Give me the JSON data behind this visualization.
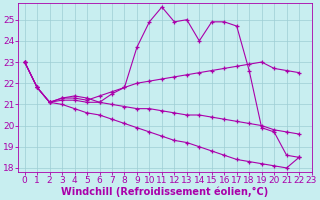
{
  "xlabel": "Windchill (Refroidissement éolien,°C)",
  "xlim": [
    -0.5,
    23
  ],
  "ylim": [
    17.8,
    25.8
  ],
  "yticks": [
    18,
    19,
    20,
    21,
    22,
    23,
    24,
    25
  ],
  "xticks": [
    0,
    1,
    2,
    3,
    4,
    5,
    6,
    7,
    8,
    9,
    10,
    11,
    12,
    13,
    14,
    15,
    16,
    17,
    18,
    19,
    20,
    21,
    22,
    23
  ],
  "background_color": "#c8eef0",
  "line_color": "#aa00aa",
  "grid_color": "#9ecdd4",
  "series": [
    [
      23.0,
      21.8,
      21.1,
      21.3,
      21.4,
      21.3,
      21.1,
      21.5,
      21.8,
      23.7,
      24.9,
      25.6,
      24.9,
      25.0,
      24.0,
      24.9,
      24.9,
      24.7,
      22.6,
      19.9,
      19.7,
      18.6,
      18.5
    ],
    [
      23.0,
      21.8,
      21.1,
      21.3,
      21.3,
      21.2,
      21.4,
      21.6,
      21.8,
      22.0,
      22.1,
      22.2,
      22.3,
      22.4,
      22.5,
      22.6,
      22.7,
      22.8,
      22.9,
      23.0,
      22.7,
      22.6,
      22.5
    ],
    [
      23.0,
      21.8,
      21.1,
      21.2,
      21.2,
      21.1,
      21.1,
      21.0,
      20.9,
      20.8,
      20.8,
      20.7,
      20.6,
      20.5,
      20.5,
      20.4,
      20.3,
      20.2,
      20.1,
      20.0,
      19.8,
      19.7,
      19.6
    ],
    [
      23.0,
      21.8,
      21.1,
      21.0,
      20.8,
      20.6,
      20.5,
      20.3,
      20.1,
      19.9,
      19.7,
      19.5,
      19.3,
      19.2,
      19.0,
      18.8,
      18.6,
      18.4,
      18.3,
      18.2,
      18.1,
      18.0,
      18.5
    ]
  ],
  "font_size": 7,
  "tick_font_size": 6.5,
  "xlabel_fontsize": 7
}
